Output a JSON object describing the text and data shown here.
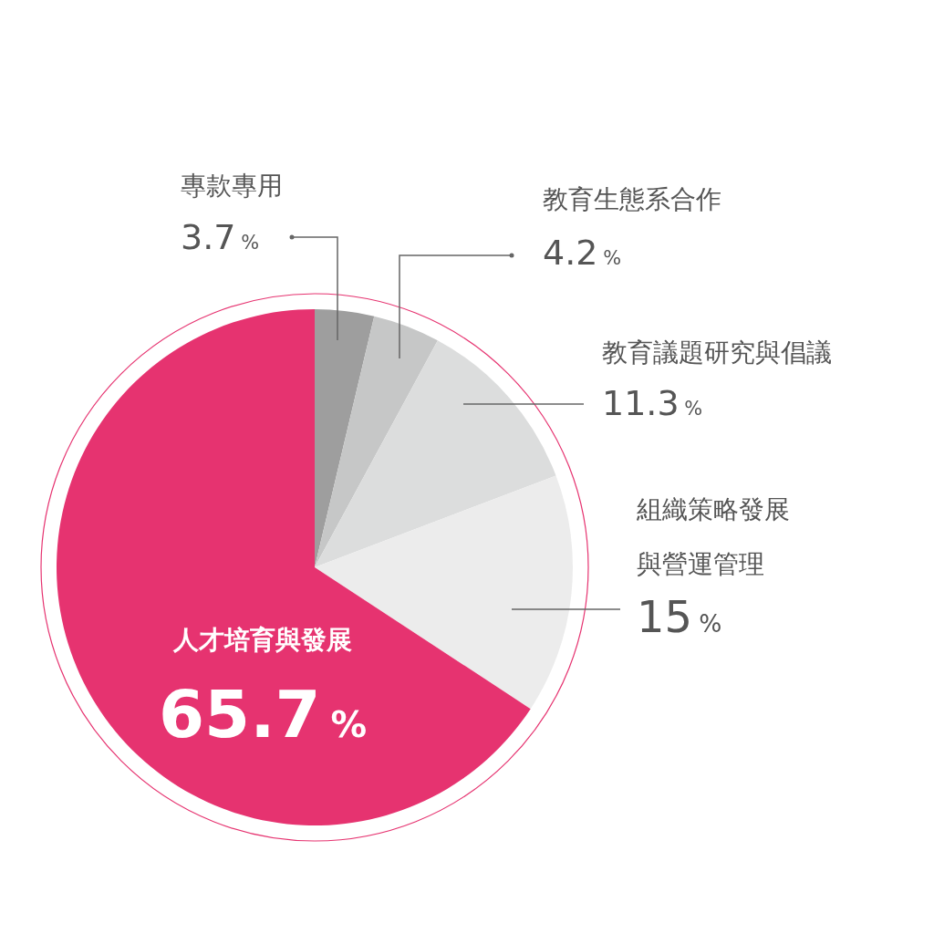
{
  "chart_data": {
    "type": "pie",
    "categories": [
      "專款專用",
      "教育生態系合作",
      "教育議題研究與倡議",
      "組織策略發展與營運管理",
      "人才培育與發展"
    ],
    "values": [
      3.7,
      4.2,
      11.3,
      15,
      65.7
    ],
    "value_labels": [
      "3.7%",
      "4.2%",
      "11.3%",
      "15%",
      "65.7%"
    ],
    "colors": [
      "#9e9e9e",
      "#c6c7c7",
      "#dcdddd",
      "#ececec",
      "#e63370"
    ]
  }
}
